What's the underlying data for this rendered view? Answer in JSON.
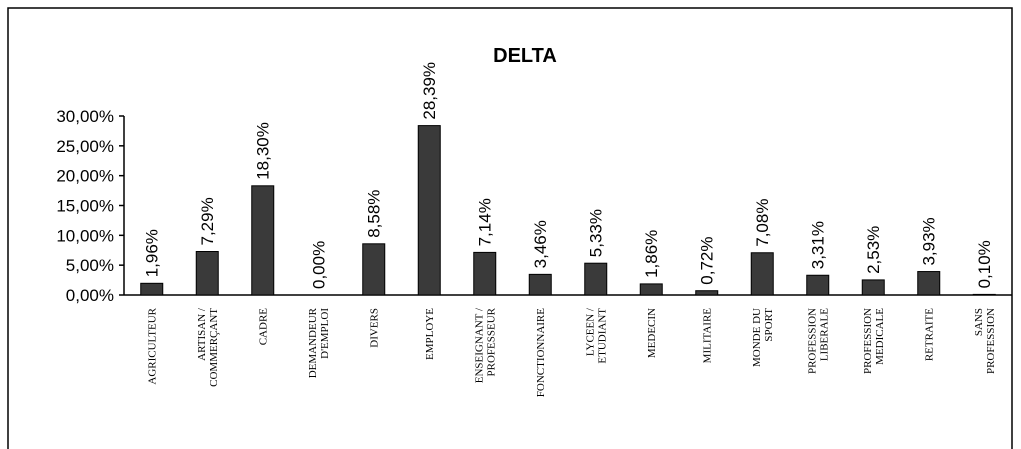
{
  "chart_data": {
    "type": "bar",
    "title": "DELTA",
    "categories": [
      "AGRICULTEUR",
      "ARTISAN /\nCOMMERÇANT",
      "CADRE",
      "DEMANDEUR\nD'EMPLOI",
      "DIVERS",
      "EMPLOYE",
      "ENSEIGNANT /\nPROFESSEUR",
      "FONCTIONNAIRE",
      "LYCEEN /\nETUDIANT",
      "MEDECIN",
      "MILITAIRE",
      "MONDE DU\nSPORT",
      "PROFESSION\nLIBERALE",
      "PROFESSION\nMEDICALE",
      "RETRAITE",
      "SANS\nPROFESSION"
    ],
    "values": [
      1.96,
      7.29,
      18.3,
      0.0,
      8.58,
      28.39,
      7.14,
      3.46,
      5.33,
      1.86,
      0.72,
      7.08,
      3.31,
      2.53,
      3.93,
      0.1
    ],
    "value_labels": [
      "1,96%",
      "7,29%",
      "18,30%",
      "0,00%",
      "8,58%",
      "28,39%",
      "7,14%",
      "3,46%",
      "5,33%",
      "1,86%",
      "0,72%",
      "7,08%",
      "3,31%",
      "2,53%",
      "3,93%",
      "0,10%"
    ],
    "color": "#3a3a3a",
    "ylim": [
      0,
      30
    ],
    "yticks": [
      {
        "value": 0,
        "label": "0,00%"
      },
      {
        "value": 5,
        "label": "5,00%"
      },
      {
        "value": 10,
        "label": "10,00%"
      },
      {
        "value": 15,
        "label": "15,00%"
      },
      {
        "value": 20,
        "label": "20,00%"
      },
      {
        "value": 25,
        "label": "25,00%"
      },
      {
        "value": 30,
        "label": "30,00%"
      }
    ],
    "grid": false
  }
}
